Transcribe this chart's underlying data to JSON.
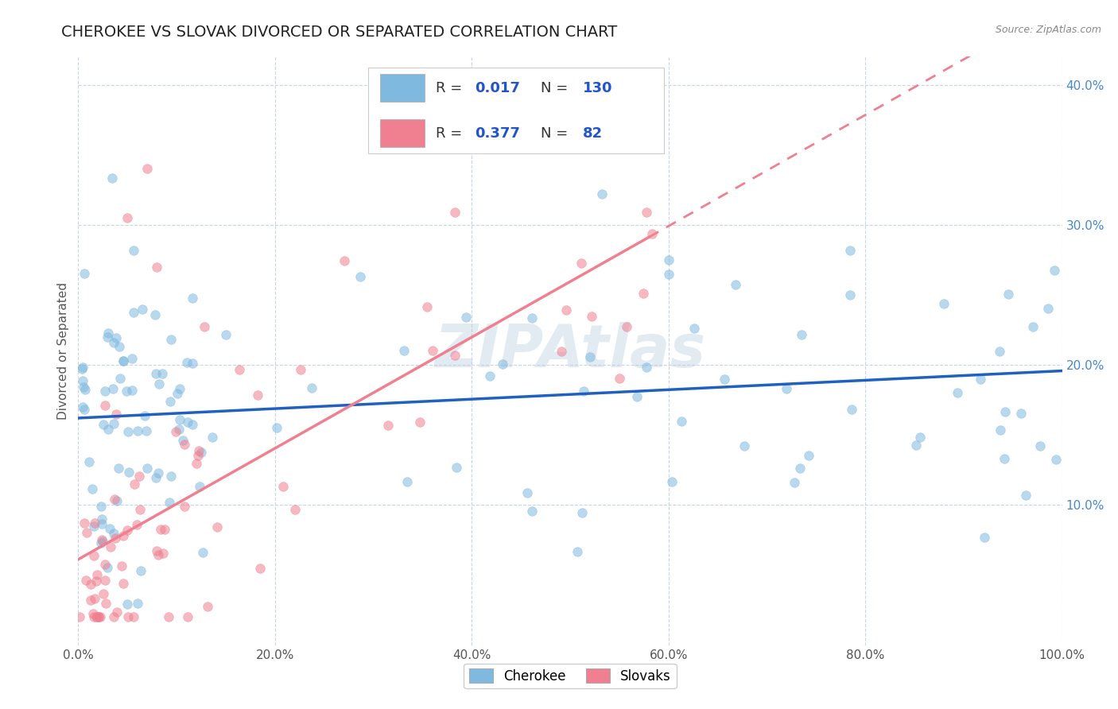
{
  "title": "CHEROKEE VS SLOVAK DIVORCED OR SEPARATED CORRELATION CHART",
  "source": "Source: ZipAtlas.com",
  "ylabel": "Divorced or Separated",
  "xlim": [
    0.0,
    1.0
  ],
  "ylim": [
    0.0,
    0.42
  ],
  "cherokee_R": "0.017",
  "cherokee_N": "130",
  "slovak_R": "0.377",
  "slovak_N": "82",
  "cherokee_color": "#7fb9e0",
  "slovak_color": "#f08090",
  "background_color": "#ffffff",
  "grid_color": "#c8d4e8",
  "watermark": "ZIPAtlas",
  "title_fontsize": 14,
  "axis_fontsize": 11,
  "tick_fontsize": 11,
  "legend_fontsize": 13
}
